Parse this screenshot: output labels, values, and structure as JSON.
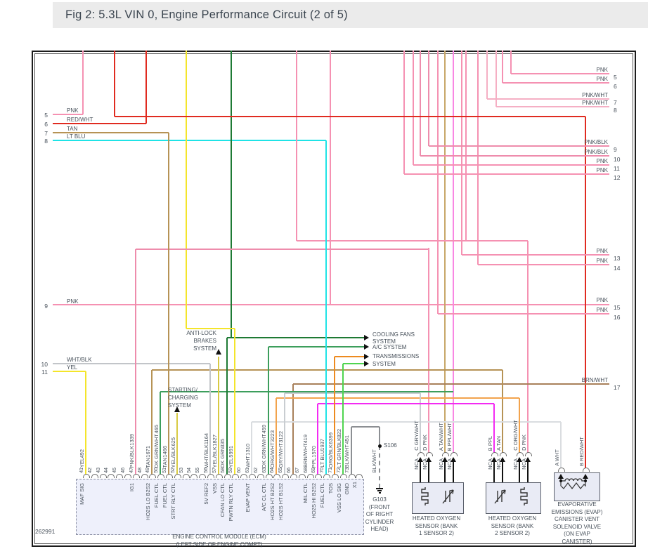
{
  "title": "Fig 2: 5.3L VIN 0, Engine Performance Circuit (2 of 5)",
  "figure_number": "262991",
  "colors": {
    "pnk": "#F591B2",
    "pnkwht": "#F5AFC4",
    "pnkblk": "#EE8CAC",
    "red": "#E02B20",
    "tan": "#B69355",
    "tanwht": "#C7A768",
    "ltblu": "#1FE3E6",
    "yel": "#F4E52B",
    "yelblk": "#D8CA43",
    "dkgrn": "#1E7A34",
    "grnwht": "#3C9E5C",
    "org": "#ED8A1F",
    "orgwht": "#F2A34D",
    "grywht": "#C9CDD1",
    "wht": "#DADDE0",
    "whtblk": "#C2C5C9",
    "brnwht": "#A8805A",
    "ppl": "#F32BF3",
    "pplwht": "#F987E3",
    "ltgrnblk": "#4FD44F",
    "blkwht": "#8C8F93"
  },
  "left_leads": [
    {
      "n": "5",
      "wire": "PNK"
    },
    {
      "n": "6",
      "wire": "RED/WHT"
    },
    {
      "n": "7",
      "wire": "TAN"
    },
    {
      "n": "8",
      "wire": "LT BLU"
    },
    {
      "n": "9",
      "wire": "PNK"
    },
    {
      "n": "10",
      "wire": "WHT/BLK"
    },
    {
      "n": "11",
      "wire": "YEL"
    }
  ],
  "right_leads": [
    {
      "n": "5",
      "wire": "PNK"
    },
    {
      "n": "6",
      "wire": "PNK"
    },
    {
      "n": "7",
      "wire": "PNK/WHT"
    },
    {
      "n": "8",
      "wire": "PNK/WHT"
    },
    {
      "n": "9",
      "wire": "PNK/BLK"
    },
    {
      "n": "10",
      "wire": "PNK/BLK"
    },
    {
      "n": "11",
      "wire": "PNK"
    },
    {
      "n": "12",
      "wire": "PNK"
    },
    {
      "n": "13",
      "wire": "PNK"
    },
    {
      "n": "14",
      "wire": "PNK"
    },
    {
      "n": "15",
      "wire": "PNK"
    },
    {
      "n": "16",
      "wire": "PNK"
    },
    {
      "n": "17",
      "wire": "BRN/WHT"
    }
  ],
  "systems": {
    "abs": [
      "ANTI-LOCK",
      "BRAKES",
      "SYSTEM"
    ],
    "starting": [
      "STARTING/",
      "CHARGING",
      "SYSTEM"
    ],
    "cooling": [
      "COOLING FANS",
      "SYSTEM"
    ],
    "ac": [
      "A/C SYSTEM"
    ],
    "trans": [
      "TRANSMISSIONS",
      "SYSTEM"
    ]
  },
  "ground": {
    "splice": "S106",
    "wire": "BLK/WHT",
    "label_lines": [
      "G103",
      "(FRONT",
      "OF RIGHT",
      "CYLINDER",
      "HEAD)"
    ]
  },
  "ecm": {
    "connector_id": "X1",
    "name_lines": [
      "ENGINE CONTROL MODULE (ECM)",
      "(LEFT SIDE OF ENGINE COMPT)"
    ],
    "pins": [
      {
        "pin": "41",
        "circuit": "492",
        "wire": "YEL",
        "function": "MAF SIG"
      },
      {
        "pin": "42"
      },
      {
        "pin": "43"
      },
      {
        "pin": "44"
      },
      {
        "pin": "45"
      },
      {
        "pin": "46"
      },
      {
        "pin": "47",
        "circuit": "1339",
        "wire": "PNK/BLK",
        "function": "IG1"
      },
      {
        "pin": "48"
      },
      {
        "pin": "49",
        "circuit": "1671",
        "wire": "TAN",
        "function": "HO2S LO B2S2"
      },
      {
        "pin": "50",
        "circuit": "465",
        "wire": "DK GRN/WHT",
        "function": "FUEL CTL"
      },
      {
        "pin": "51",
        "circuit": "1466",
        "wire": "TAN",
        "function": "FUEL CTL"
      },
      {
        "pin": "52",
        "circuit": "625",
        "wire": "YEL/BLK",
        "function": "STRT RLY CTL"
      },
      {
        "pin": "53"
      },
      {
        "pin": "54"
      },
      {
        "pin": "55"
      },
      {
        "pin": "56",
        "circuit": "1164",
        "wire": "WHT/BLK",
        "function": "5V REF2"
      },
      {
        "pin": "57",
        "circuit": "1827",
        "wire": "YEL/BLK",
        "function": "VSS"
      },
      {
        "pin": "58",
        "circuit": "335",
        "wire": "DK GRN",
        "function": "CFAN LO CTL"
      },
      {
        "pin": "59",
        "circuit": "5991",
        "wire": "YEL",
        "function": "PWTN RLY CTL"
      },
      {
        "pin": "60"
      },
      {
        "pin": "61",
        "circuit": "1310",
        "wire": "WHT",
        "function": "EVAP VENT"
      },
      {
        "pin": "62"
      },
      {
        "pin": "63",
        "circuit": "459",
        "wire": "DK GRN/WHT",
        "function": "A/C CL CTL"
      },
      {
        "pin": "64",
        "circuit": "3223",
        "wire": "ORG/WHT",
        "function": "HO2S HT B2S2"
      },
      {
        "pin": "65",
        "circuit": "3122",
        "wire": "GRY/WHT",
        "function": "HO2S HT B1S2"
      },
      {
        "pin": "66"
      },
      {
        "pin": "67"
      },
      {
        "pin": "68",
        "circuit": "419",
        "wire": "BRN/WHT",
        "function": "MIL CTL"
      },
      {
        "pin": "69",
        "circuit": "1570",
        "wire": "PPL",
        "function": "HO2S HI B2S2"
      },
      {
        "pin": "70",
        "circuit": "1937",
        "wire": "LT BLU",
        "function": "FUEL CTL"
      },
      {
        "pin": "71",
        "circuit": "6399",
        "wire": "ORG/BLK",
        "function": "TOS"
      },
      {
        "pin": "72",
        "circuit": "822",
        "wire": "LT GRN/BLK",
        "function": "VSS LO SIG"
      },
      {
        "pin": "73",
        "circuit": "451",
        "wire": "BLK/WHT",
        "function": "GND"
      }
    ]
  },
  "components": [
    {
      "id": "ho2s-bank1",
      "label_lines": [
        "HEATED OXYGEN",
        "SENSOR (BANK",
        "1 SENSOR 2)"
      ],
      "terminals": [
        {
          "t": "C",
          "wire": "GRY/WHT",
          "nca": "NCA"
        },
        {
          "t": "D",
          "wire": "PNK",
          "nca": "NCA"
        },
        {
          "t": "A",
          "wire": "TAN/WHT",
          "nca": "NCA"
        },
        {
          "t": "B",
          "wire": "PPL/WHT",
          "nca": "NCA"
        }
      ]
    },
    {
      "id": "ho2s-bank2",
      "label_lines": [
        "HEATED OXYGEN",
        "SENSOR (BANK",
        "2 SENSOR 2)"
      ],
      "terminals": [
        {
          "t": "B",
          "wire": "PPL",
          "nca": "NCA"
        },
        {
          "t": "A",
          "wire": "TAN",
          "nca": "NCA"
        },
        {
          "t": "C",
          "wire": "ORG/WHT",
          "nca": "NCA"
        },
        {
          "t": "D",
          "wire": "PNK",
          "nca": "NCA"
        }
      ]
    },
    {
      "id": "evap-vent-solenoid",
      "label_lines": [
        "EVAPORATIVE",
        "EMISSIONS (EVAP)",
        "CANISTER VENT",
        "SOLENOID VALVE",
        "(ON EVAP",
        "CANISTER)"
      ],
      "terminals": [
        {
          "t": "A",
          "wire": "WHT"
        },
        {
          "t": "B",
          "wire": "RED/WHT"
        }
      ]
    }
  ]
}
